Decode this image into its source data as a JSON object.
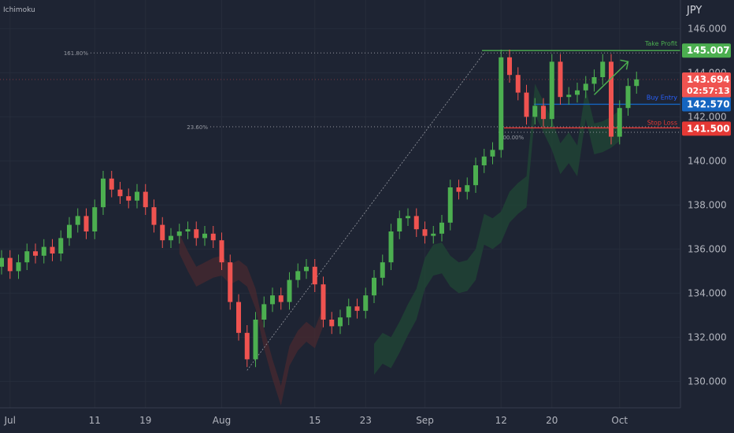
{
  "indicator_label": "Ichimoku",
  "currency": "JPY",
  "colors": {
    "background": "#1e2433",
    "up": "#26a69a",
    "up_bright": "#4caf50",
    "down": "#ef5350",
    "take_profit": "#4caf50",
    "buy_entry": "#1565c0",
    "stop_loss": "#e53935",
    "current_price": "#ef5350",
    "axis_text": "#b2b5be",
    "cloud_green": "#1f4a35",
    "cloud_red": "#4a2a2f"
  },
  "chart_data": {
    "type": "candlestick",
    "y_axis": {
      "min": 128.8,
      "max": 147.3,
      "ticks": [
        130,
        132,
        134,
        136,
        138,
        140,
        142,
        144,
        146
      ],
      "tick_labels": [
        "130.000",
        "132.000",
        "134.000",
        "136.000",
        "138.000",
        "140.000",
        "142.000",
        "144.000",
        "146.000"
      ]
    },
    "x_axis": {
      "labels": [
        {
          "label": "Jul",
          "bar": 1
        },
        {
          "label": "11",
          "bar": 11
        },
        {
          "label": "19",
          "bar": 17
        },
        {
          "label": "Aug",
          "bar": 26
        },
        {
          "label": "15",
          "bar": 37
        },
        {
          "label": "23",
          "bar": 43
        },
        {
          "label": "Sep",
          "bar": 50
        },
        {
          "label": "12",
          "bar": 59
        },
        {
          "label": "20",
          "bar": 65
        },
        {
          "label": "Oct",
          "bar": 73
        }
      ]
    },
    "candles_close": [
      135.6,
      135.0,
      135.4,
      135.9,
      135.7,
      136.1,
      135.8,
      136.5,
      137.1,
      137.5,
      136.8,
      137.9,
      139.2,
      138.7,
      138.4,
      138.2,
      138.6,
      137.9,
      137.1,
      136.4,
      136.6,
      136.8,
      136.9,
      136.5,
      136.7,
      136.4,
      135.4,
      133.6,
      132.2,
      131.0,
      132.8,
      133.5,
      133.9,
      133.6,
      134.6,
      135.0,
      135.2,
      134.4,
      132.8,
      132.5,
      132.9,
      133.4,
      133.2,
      133.9,
      134.7,
      135.4,
      136.8,
      137.4,
      137.5,
      136.9,
      136.6,
      136.7,
      137.2,
      138.8,
      138.6,
      138.9,
      139.8,
      140.2,
      140.5,
      144.7,
      143.9,
      143.1,
      142.0,
      142.5,
      141.9,
      144.5,
      142.9,
      143.0,
      143.2,
      143.5,
      143.8,
      144.5,
      141.1,
      142.4,
      143.4,
      143.7
    ],
    "ichimoku_cloud": {
      "green_start_bar": 44,
      "green_end_bar": 73,
      "red_start_bar": 21,
      "red_end_bar": 38
    },
    "fibonacci": {
      "from": {
        "bar": 29,
        "price": 130.5
      },
      "to": {
        "bar": 57,
        "price": 144.9
      },
      "levels": [
        {
          "label": "161.80%",
          "price": 144.9
        },
        {
          "label": "23.60%",
          "price": 141.55
        },
        {
          "label": "100.00%",
          "price": 141.3
        }
      ]
    },
    "levels": {
      "take_profit": {
        "label": "Take Profit",
        "price": 145.007,
        "price_label": "145.007"
      },
      "buy_entry": {
        "label": "Buy Entry",
        "price": 142.57,
        "price_label": "142.570"
      },
      "stop_loss": {
        "label": "Stop Loss",
        "price": 141.5,
        "price_label": "141.500"
      },
      "current": {
        "price": 143.694,
        "price_label": "143.694",
        "countdown": "02:57:13"
      }
    },
    "projection_arrow": {
      "from": {
        "bar": 70,
        "price": 143.0
      },
      "to": {
        "bar": 74,
        "price": 144.5
      }
    }
  }
}
